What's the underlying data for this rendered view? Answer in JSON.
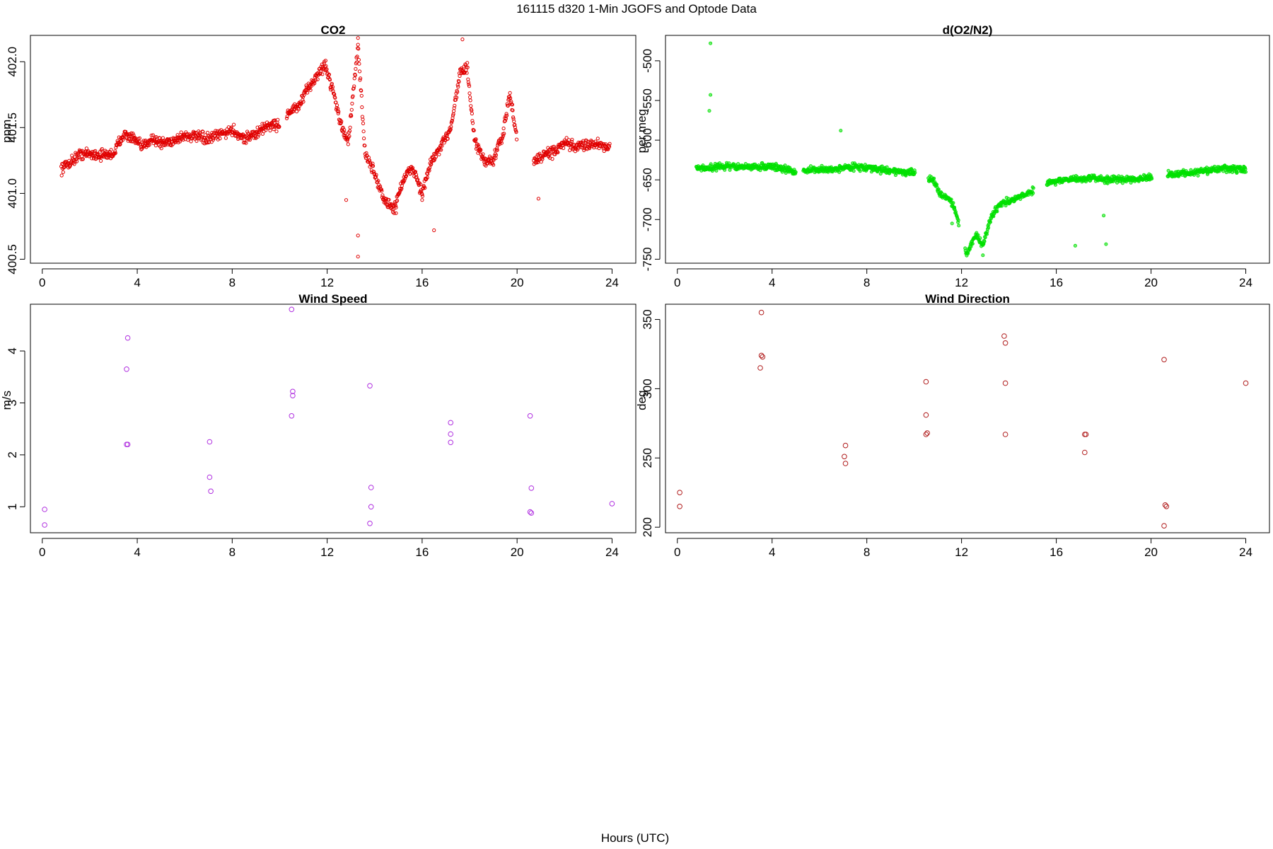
{
  "figure": {
    "title": "161115   d320   1-Min  JGOFS and Optode Data",
    "xlabel": "Hours (UTC)"
  },
  "chart_data": [
    {
      "id": "co2",
      "type": "scatter",
      "title": "CO2",
      "xlabel": "",
      "ylabel": "ppm",
      "xlim": [
        -0.5,
        25
      ],
      "ylim": [
        400.47,
        402.2
      ],
      "xticks": [
        0,
        4,
        8,
        12,
        16,
        20,
        24
      ],
      "yticks": [
        400.5,
        401.0,
        401.5,
        402.0
      ],
      "ytick_labels": [
        "400.5",
        "401.0",
        "401.5",
        "402.0"
      ],
      "color": "#e00000",
      "marker": "circle-open-small",
      "trend": [
        [
          0.8,
          401.19
        ],
        [
          1.2,
          401.24
        ],
        [
          1.6,
          401.3
        ],
        [
          2.0,
          401.3
        ],
        [
          2.5,
          401.29
        ],
        [
          3.0,
          401.3
        ],
        [
          3.4,
          401.45
        ],
        [
          3.8,
          401.42
        ],
        [
          4.2,
          401.35
        ],
        [
          4.6,
          401.42
        ],
        [
          5.0,
          401.38
        ],
        [
          5.5,
          401.4
        ],
        [
          6.0,
          401.44
        ],
        [
          6.5,
          401.43
        ],
        [
          7.0,
          401.41
        ],
        [
          7.5,
          401.45
        ],
        [
          8.0,
          401.48
        ],
        [
          8.5,
          401.42
        ],
        [
          9.0,
          401.45
        ],
        [
          9.5,
          401.52
        ],
        [
          10.0,
          401.52
        ],
        [
          10.4,
          401.62
        ],
        [
          10.8,
          401.66
        ],
        [
          11.2,
          401.8
        ],
        [
          11.6,
          401.9
        ],
        [
          11.9,
          401.98
        ],
        [
          12.3,
          401.75
        ],
        [
          12.6,
          401.5
        ],
        [
          12.9,
          401.4
        ],
        [
          13.3,
          402.12
        ],
        [
          13.6,
          401.3
        ],
        [
          14.0,
          401.15
        ],
        [
          14.4,
          400.95
        ],
        [
          14.8,
          400.88
        ],
        [
          15.2,
          401.1
        ],
        [
          15.6,
          401.2
        ],
        [
          16.0,
          401.0
        ],
        [
          16.4,
          401.25
        ],
        [
          16.8,
          401.35
        ],
        [
          17.2,
          401.5
        ],
        [
          17.6,
          401.92
        ],
        [
          17.9,
          401.95
        ],
        [
          18.2,
          401.4
        ],
        [
          18.6,
          401.25
        ],
        [
          19.0,
          401.25
        ],
        [
          19.4,
          401.45
        ],
        [
          19.7,
          401.75
        ],
        [
          20.0,
          401.4
        ],
        [
          20.4,
          401.3
        ],
        [
          20.8,
          401.25
        ],
        [
          21.2,
          401.3
        ],
        [
          21.6,
          401.32
        ],
        [
          22.0,
          401.38
        ],
        [
          22.5,
          401.35
        ],
        [
          23.0,
          401.38
        ],
        [
          23.5,
          401.37
        ],
        [
          23.9,
          401.36
        ]
      ],
      "gaps": [
        [
          10.0,
          10.3
        ],
        [
          20.0,
          20.7
        ]
      ],
      "spread": 0.06,
      "outliers": [
        [
          13.3,
          400.52
        ],
        [
          13.3,
          400.68
        ],
        [
          16.5,
          400.72
        ],
        [
          14.9,
          400.85
        ],
        [
          12.8,
          400.95
        ],
        [
          20.9,
          400.96
        ],
        [
          13.3,
          402.18
        ],
        [
          17.7,
          402.17
        ],
        [
          16.0,
          400.95
        ]
      ]
    },
    {
      "id": "o2n2",
      "type": "scatter",
      "title": "d(O2/N2)",
      "xlabel": "",
      "ylabel": "per meg",
      "xlim": [
        -0.5,
        25
      ],
      "ylim": [
        -755,
        -468
      ],
      "xticks": [
        0,
        4,
        8,
        12,
        16,
        20,
        24
      ],
      "yticks": [
        -750,
        -700,
        -650,
        -600,
        -550,
        -500
      ],
      "ytick_labels": [
        "-750",
        "-700",
        "-650",
        "-600",
        "-550",
        "-500"
      ],
      "color": "#00e000",
      "marker": "filled-small",
      "trend": [
        [
          0.8,
          -636
        ],
        [
          2.0,
          -633
        ],
        [
          3.0,
          -634
        ],
        [
          4.0,
          -633
        ],
        [
          5.0,
          -640
        ],
        [
          5.4,
          -638
        ],
        [
          6.5,
          -637
        ],
        [
          7.5,
          -633
        ],
        [
          8.5,
          -637
        ],
        [
          9.5,
          -640
        ],
        [
          10.0,
          -642
        ],
        [
          10.8,
          -650
        ],
        [
          11.1,
          -668
        ],
        [
          11.4,
          -672
        ],
        [
          11.7,
          -684
        ],
        [
          12.2,
          -745
        ],
        [
          12.6,
          -718
        ],
        [
          12.9,
          -734
        ],
        [
          13.2,
          -700
        ],
        [
          13.6,
          -680
        ],
        [
          14.2,
          -675
        ],
        [
          14.6,
          -670
        ],
        [
          14.9,
          -665
        ],
        [
          15.8,
          -652
        ],
        [
          16.5,
          -650
        ],
        [
          17.5,
          -648
        ],
        [
          18.5,
          -650
        ],
        [
          19.5,
          -648
        ],
        [
          20.0,
          -648
        ],
        [
          20.9,
          -643
        ],
        [
          22.0,
          -640
        ],
        [
          23.0,
          -636
        ],
        [
          24.0,
          -637
        ]
      ],
      "gaps": [
        [
          5.0,
          5.3
        ],
        [
          10.05,
          10.6
        ],
        [
          11.9,
          12.15
        ],
        [
          15.05,
          15.6
        ],
        [
          20.05,
          20.7
        ]
      ],
      "spread": 6,
      "outliers": [
        [
          1.4,
          -478
        ],
        [
          1.4,
          -543
        ],
        [
          1.35,
          -563
        ],
        [
          6.9,
          -588
        ],
        [
          16.8,
          -733
        ],
        [
          18.1,
          -731
        ],
        [
          18.0,
          -695
        ],
        [
          12.9,
          -745
        ],
        [
          11.6,
          -705
        ],
        [
          14.0,
          -680
        ]
      ]
    },
    {
      "id": "wind_speed",
      "type": "scatter",
      "title": "Wind Speed",
      "xlabel": "",
      "ylabel": "m/s",
      "xlim": [
        -0.5,
        25
      ],
      "ylim": [
        0.5,
        4.9
      ],
      "xticks": [
        0,
        4,
        8,
        12,
        16,
        20,
        24
      ],
      "yticks": [
        1,
        2,
        3,
        4
      ],
      "ytick_labels": [
        "1",
        "2",
        "3",
        "4"
      ],
      "color": "#b030e0",
      "marker": "circle-open",
      "points": [
        [
          0.1,
          0.95
        ],
        [
          0.1,
          0.65
        ],
        [
          3.6,
          4.25
        ],
        [
          3.55,
          3.65
        ],
        [
          3.55,
          2.2
        ],
        [
          3.6,
          2.2
        ],
        [
          7.05,
          2.25
        ],
        [
          7.05,
          1.57
        ],
        [
          7.1,
          1.3
        ],
        [
          10.5,
          4.8
        ],
        [
          10.55,
          3.22
        ],
        [
          10.55,
          3.14
        ],
        [
          10.5,
          2.75
        ],
        [
          13.8,
          3.33
        ],
        [
          13.85,
          1.37
        ],
        [
          13.85,
          1.0
        ],
        [
          13.8,
          0.68
        ],
        [
          17.2,
          2.62
        ],
        [
          17.2,
          2.4
        ],
        [
          17.2,
          2.24
        ],
        [
          20.55,
          2.75
        ],
        [
          20.6,
          1.36
        ],
        [
          20.55,
          0.9
        ],
        [
          20.6,
          0.88
        ],
        [
          24.0,
          1.06
        ]
      ]
    },
    {
      "id": "wind_dir",
      "type": "scatter",
      "title": "Wind Direction",
      "xlabel": "",
      "ylabel": "deg",
      "xlim": [
        -0.5,
        25
      ],
      "ylim": [
        196,
        361
      ],
      "xticks": [
        0,
        4,
        8,
        12,
        16,
        20,
        24
      ],
      "yticks": [
        200,
        250,
        300,
        350
      ],
      "ytick_labels": [
        "200",
        "250",
        "300",
        "350"
      ],
      "color": "#b01c1c",
      "marker": "circle-open",
      "points": [
        [
          0.1,
          225
        ],
        [
          0.1,
          215
        ],
        [
          3.55,
          355
        ],
        [
          3.55,
          324
        ],
        [
          3.6,
          323
        ],
        [
          3.5,
          315
        ],
        [
          7.1,
          259
        ],
        [
          7.05,
          251
        ],
        [
          7.1,
          246
        ],
        [
          10.5,
          305
        ],
        [
          10.5,
          281
        ],
        [
          10.55,
          268
        ],
        [
          10.5,
          267
        ],
        [
          13.8,
          338
        ],
        [
          13.85,
          333
        ],
        [
          13.85,
          304
        ],
        [
          13.85,
          267
        ],
        [
          17.2,
          267
        ],
        [
          17.25,
          267
        ],
        [
          17.2,
          254
        ],
        [
          20.55,
          321
        ],
        [
          20.6,
          216
        ],
        [
          20.65,
          215
        ],
        [
          20.55,
          201
        ],
        [
          24.0,
          304
        ]
      ]
    }
  ]
}
